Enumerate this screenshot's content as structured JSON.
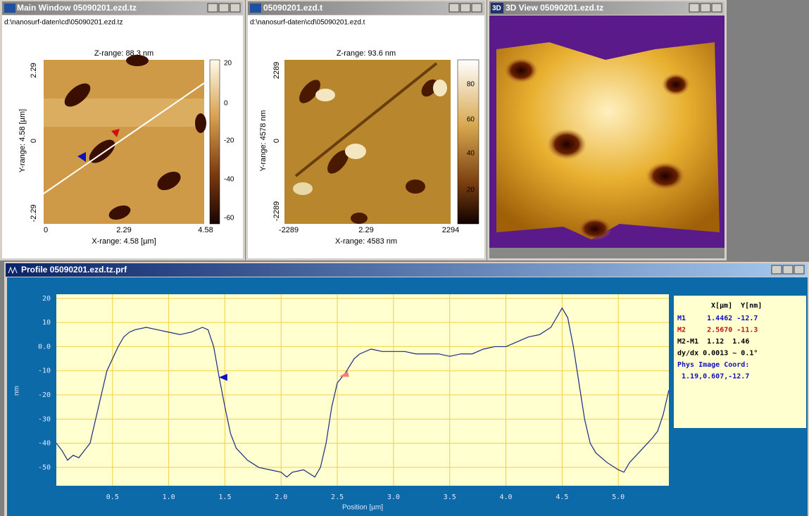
{
  "windows": {
    "main": {
      "title": "Main Window 05090201.ezd.tz",
      "path": "d:\\nanosurf-daten\\cd\\05090201.ezd.tz",
      "z_range": "Z-range: 88.3 nm",
      "y_label": "Y-range: 4.58 [µm]",
      "x_label": "X-range: 4.58 [µm]",
      "y_ticks": [
        "2.29",
        "0",
        "-2.29"
      ],
      "x_ticks": [
        "0",
        "2.29",
        "4.58"
      ],
      "colorbar_ticks": [
        "20",
        "0",
        "-20",
        "-40",
        "-60"
      ]
    },
    "second": {
      "title": "05090201.ezd.t",
      "path": "d:\\nanosurf-daten\\cd\\05090201.ezd.t",
      "z_range": "Z-range: 93.6 nm",
      "y_label": "Y-range: 4578 nm",
      "x_label": "X-range: 4583 nm",
      "y_ticks": [
        "2289",
        "0",
        "-2289"
      ],
      "x_ticks": [
        "-2289",
        "2.29",
        "2294"
      ],
      "colorbar_ticks": [
        "80",
        "60",
        "40",
        "20"
      ]
    },
    "view3d": {
      "icon": "3D",
      "title": "3D View 05090201.ezd.tz"
    },
    "profile": {
      "title": "Profile 05090201.ezd.tz.prf",
      "readout": {
        "header": "X[µm]  Y[nm]",
        "lines": [
          {
            "text": "M1     1.4462 -12.7",
            "color": "#1010c0"
          },
          {
            "text": "M2     2.5670 -11.3",
            "color": "#c01010"
          },
          {
            "text": "M2-M1  1.12  1.46",
            "color": "#000000"
          },
          {
            "text": "dy/dx 0.0013 ~ 0.1°",
            "color": "#000000"
          },
          {
            "text": "Phys Image Coord:",
            "color": "#1010c0"
          },
          {
            "text": " 1.19,0.607,-12.7",
            "color": "#1010c0"
          }
        ]
      }
    }
  },
  "chart_data": {
    "type": "line",
    "x_label": "Position [µm]",
    "y_label": "nm",
    "color": "#1a2a80",
    "grid": true,
    "xlim": [
      0,
      5.45
    ],
    "ylim": [
      -57.6,
      21.7
    ],
    "xticks": [
      0.5,
      {
        "value": 1,
        "label": "1.0"
      },
      1.5,
      {
        "value": 2,
        "label": "2.0"
      },
      2.5,
      {
        "value": 3,
        "label": "3.0"
      },
      3.5,
      {
        "value": 4,
        "label": "4.0"
      },
      4.5,
      {
        "value": 5,
        "label": "5.0"
      }
    ],
    "yticks": [
      20,
      10,
      {
        "value": 0,
        "label": "0.0"
      },
      -10,
      -20,
      -30,
      -40,
      -50
    ],
    "x": [
      0,
      0.05,
      0.1,
      0.15,
      0.2,
      0.25,
      0.3,
      0.35,
      0.4,
      0.45,
      0.5,
      0.55,
      0.6,
      0.65,
      0.7,
      0.8,
      0.9,
      1.0,
      1.1,
      1.2,
      1.3,
      1.35,
      1.4,
      1.45,
      1.5,
      1.55,
      1.6,
      1.7,
      1.8,
      1.9,
      2.0,
      2.05,
      2.1,
      2.2,
      2.3,
      2.35,
      2.4,
      2.45,
      2.5,
      2.57,
      2.65,
      2.7,
      2.8,
      2.9,
      3.0,
      3.1,
      3.2,
      3.3,
      3.4,
      3.5,
      3.6,
      3.7,
      3.8,
      3.9,
      4.0,
      4.1,
      4.2,
      4.3,
      4.4,
      4.5,
      4.55,
      4.6,
      4.65,
      4.7,
      4.75,
      4.8,
      4.9,
      5.0,
      5.05,
      5.1,
      5.2,
      5.3,
      5.35,
      5.4,
      5.45
    ],
    "values": [
      -40,
      -43,
      -47,
      -45,
      -46,
      -43,
      -40,
      -30,
      -20,
      -10,
      -5,
      0,
      4,
      6,
      7,
      8,
      7,
      6,
      5,
      6,
      8,
      7,
      0,
      -13,
      -25,
      -36,
      -42,
      -47,
      -50,
      -51,
      -52,
      -54,
      -52,
      -51,
      -54,
      -50,
      -40,
      -25,
      -15,
      -11,
      -5,
      -3,
      -1,
      -2,
      -2,
      -2,
      -3,
      -3,
      -3,
      -4,
      -3,
      -3,
      -1,
      0,
      0,
      2,
      4,
      5,
      8,
      16,
      12,
      0,
      -15,
      -30,
      -40,
      -44,
      -48,
      -51,
      -52,
      -48,
      -43,
      -38,
      -35,
      -28,
      -18
    ],
    "markers": [
      {
        "x": 1.4462,
        "y": -12.7,
        "color": "#1010c0"
      },
      {
        "x": 2.567,
        "y": -11.3,
        "color": "#f08070"
      }
    ]
  }
}
